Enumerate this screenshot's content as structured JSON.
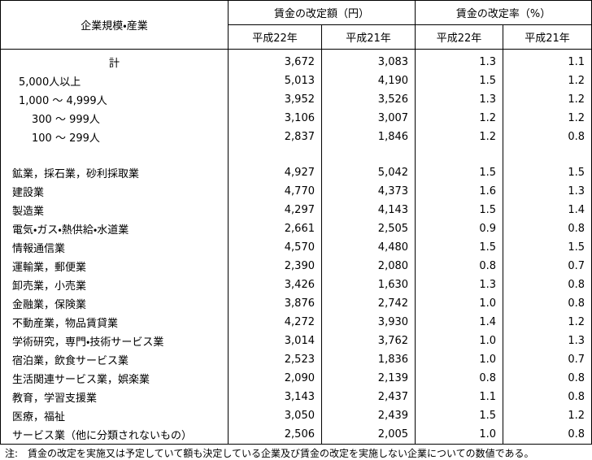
{
  "table": {
    "header": {
      "group": "企業規模・産業",
      "amount": "賃金の改定額（円）",
      "rate": "賃金の改定率（%）",
      "years": [
        "平成22年",
        "平成21年",
        "平成22年",
        "平成21年"
      ]
    },
    "rows": [
      [
        "計",
        "3,672",
        "3,083",
        "1.3",
        "1.1"
      ],
      [
        "5,000人以上",
        "5,013",
        "4,190",
        "1.5",
        "1.2"
      ],
      [
        "1,000 ～ 4,999人",
        "3,952",
        "3,526",
        "1.3",
        "1.2"
      ],
      [
        "300 ～ 999人",
        "3,106",
        "3,007",
        "1.2",
        "1.2"
      ],
      [
        "100 ～ 299人",
        "2,837",
        "1,846",
        "1.2",
        "0.8"
      ],
      [
        "鉱業，採石業，砂利採取業",
        "4,927",
        "5,042",
        "1.5",
        "1.5"
      ],
      [
        "建設業",
        "4,770",
        "4,373",
        "1.6",
        "1.3"
      ],
      [
        "製造業",
        "4,297",
        "4,143",
        "1.5",
        "1.4"
      ],
      [
        "電気・ガス・熱供給・水道業",
        "2,661",
        "2,505",
        "0.9",
        "0.8"
      ],
      [
        "情報通信業",
        "4,570",
        "4,480",
        "1.5",
        "1.5"
      ],
      [
        "運輸業，郵便業",
        "2,390",
        "2,080",
        "0.8",
        "0.7"
      ],
      [
        "卸売業，小売業",
        "3,426",
        "1,630",
        "1.3",
        "0.8"
      ],
      [
        "金融業，保険業",
        "3,876",
        "2,742",
        "1.0",
        "0.8"
      ],
      [
        "不動産業，物品賃貸業",
        "4,272",
        "3,930",
        "1.4",
        "1.2"
      ],
      [
        "学術研究，専門・技術サービス業",
        "3,014",
        "3,762",
        "1.0",
        "1.3"
      ],
      [
        "宿泊業，飲食サービス業",
        "2,523",
        "1,836",
        "1.0",
        "0.7"
      ],
      [
        "生活関連サービス業，娯楽業",
        "2,090",
        "2,139",
        "0.8",
        "0.8"
      ],
      [
        "教育，学習支援業",
        "3,143",
        "2,437",
        "1.1",
        "0.8"
      ],
      [
        "医療，福祉",
        "3,050",
        "2,439",
        "1.5",
        "1.2"
      ],
      [
        "サービス業（他に分類されないもの）",
        "2,506",
        "2,005",
        "1.0",
        "0.8"
      ]
    ],
    "note": "注:　賃金の改定を実施又は予定していて額も決定している企業及び賃金の改定を実施しない企業についての数値である。"
  }
}
